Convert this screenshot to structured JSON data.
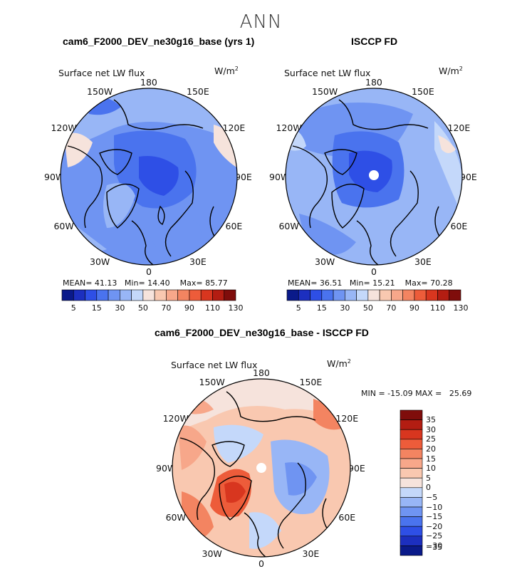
{
  "figure": {
    "title": "ANN",
    "variable": "Surface net LW flux",
    "units_base": "W/m",
    "units_exp": "2",
    "lon_labels": [
      "180",
      "150E",
      "120E",
      "90E",
      "60E",
      "30E",
      "0",
      "30W",
      "60W",
      "90W",
      "120W",
      "150W"
    ]
  },
  "panels": [
    {
      "title": "cam6_F2000_DEV_ne30g16_base (yrs 1)",
      "stats": {
        "mean_label": "MEAN=",
        "mean": "41.13",
        "min_label": "Min=",
        "min": "14.40",
        "max_label": "Max=",
        "max": "85.77"
      }
    },
    {
      "title": "ISCCP FD",
      "stats": {
        "mean_label": "MEAN=",
        "mean": "36.51",
        "min_label": "Min=",
        "min": "15.21",
        "max_label": "Max=",
        "max": "70.28"
      }
    },
    {
      "title": "cam6_F2000_DEV_ne30g16_base - ISCCP FD",
      "stats_line": "MIN = -15.09 MAX =   25.69"
    }
  ],
  "colorbar_abs": {
    "colors": [
      "#0a1a8a",
      "#1c2fbf",
      "#2e4fe6",
      "#4a73ee",
      "#6f94f2",
      "#98b6f6",
      "#c4d8fa",
      "#f6e3dc",
      "#f9c8b0",
      "#f7a78a",
      "#f38461",
      "#ed5c3a",
      "#d8361f",
      "#b31d12",
      "#7f0d0b"
    ],
    "tick_labels": [
      "5",
      "15",
      "30",
      "50",
      "70",
      "90",
      "110",
      "130"
    ]
  },
  "colorbar_diff": {
    "colors": [
      "#0a1a8a",
      "#1c2fbf",
      "#2e4fe6",
      "#4a73ee",
      "#6f94f2",
      "#98b6f6",
      "#c4d8fa",
      "#f6e3dc",
      "#f9c8b0",
      "#f7a78a",
      "#f38461",
      "#ed5c3a",
      "#d8361f",
      "#b31d12",
      "#7f0d0b"
    ],
    "tick_labels": [
      "35",
      "30",
      "25",
      "20",
      "15",
      "10",
      "5",
      "0",
      "−5",
      "−10",
      "−15",
      "−20",
      "−25",
      "−30",
      "−35"
    ]
  }
}
